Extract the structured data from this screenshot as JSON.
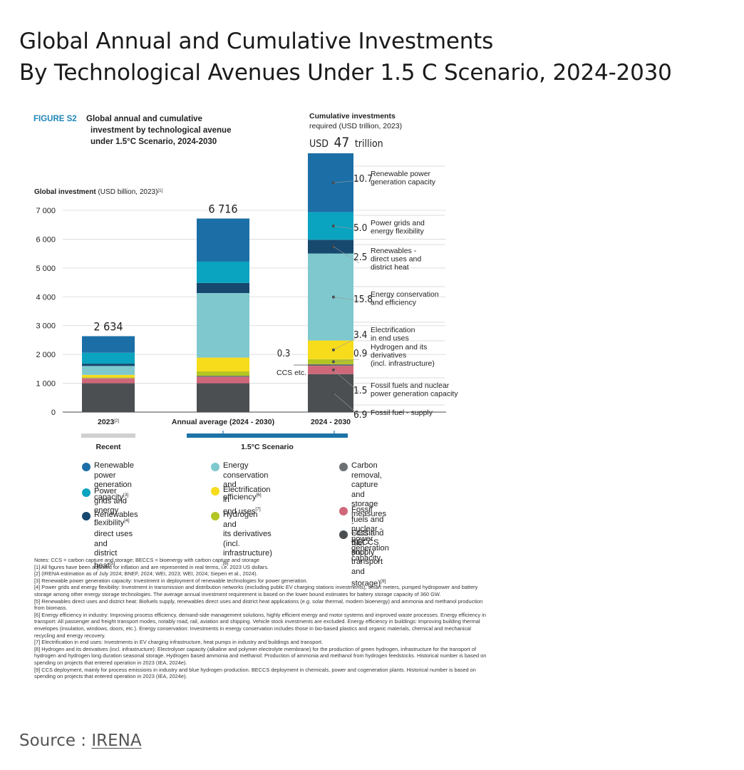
{
  "page": {
    "title_line1": "Global Annual and Cumulative Investments",
    "title_line2": "By Technological Avenues Under 1.5 C Scenario, 2024-2030",
    "source_label": "Source : ",
    "source_link": "IRENA"
  },
  "figure": {
    "label": "FIGURE S2",
    "title_line1": "Global annual and cumulative",
    "title_line2": "investment by technological avenue",
    "title_line3": "under 1.5°C Scenario, 2024-2030",
    "cumulative_heading_line1": "Cumulative investments",
    "cumulative_heading_line2": "required (USD trillion, 2023)",
    "cumulative_total_prefix": "USD",
    "cumulative_total_value": "47",
    "cumulative_total_unit": "trillion",
    "ylabel": "Global investment (USD billion, 2023)",
    "ylabel_note": "[1]",
    "group_recent": "Recent",
    "group_scenario": "1.5°C Scenario",
    "ccs_value": "0.3",
    "ccs_label": "CCS etc."
  },
  "chart_data": {
    "type": "bar",
    "stacked": true,
    "ylim": [
      0,
      7000
    ],
    "yticks": [
      "0",
      "1 000",
      "2 000",
      "3 000",
      "4 000",
      "5 000",
      "6 000",
      "7 000"
    ],
    "ytick_values": [
      0,
      1000,
      2000,
      3000,
      4000,
      5000,
      6000,
      7000
    ],
    "categories": [
      "2023",
      "Annual average (2024 - 2030)"
    ],
    "category_notes": [
      "[2]",
      ""
    ],
    "totals": [
      "2 634",
      "6 716"
    ],
    "series": [
      {
        "name": "Fossil fuel - supply",
        "color": "#4b4f51",
        "values": [
          1000,
          1000
        ]
      },
      {
        "name": "Fossil fuels and nuclear - power generation capacity",
        "color": "#d0687a",
        "values": [
          170,
          220
        ]
      },
      {
        "name": "Carbon removal, capture and storage measures - CCS and BECCS (incl. transport and storage)",
        "color": "#6d7173",
        "values": [
          10,
          40
        ]
      },
      {
        "name": "Hydrogen and its derivatives (incl. infrastructure)",
        "color": "#b3c523",
        "values": [
          20,
          150
        ]
      },
      {
        "name": "Electrification in end uses",
        "color": "#f7dc1c",
        "values": [
          90,
          480
        ]
      },
      {
        "name": "Energy conservation and efficiency",
        "color": "#7ec8ce",
        "values": [
          310,
          2240
        ]
      },
      {
        "name": "Renewables - direct uses and district heat",
        "color": "#17486e",
        "values": [
          80,
          350
        ]
      },
      {
        "name": "Power grids and energy flexibility",
        "color": "#0aa4c0",
        "values": [
          380,
          740
        ]
      },
      {
        "name": "Renewable power generation capacity",
        "color": "#1b6fa6",
        "values": [
          574,
          1496
        ]
      }
    ],
    "cumulative": {
      "category": "2024 - 2030",
      "total": 47,
      "segments": [
        {
          "value": "6.9",
          "label": "Fossil fuel - supply",
          "color": "#4b4f51",
          "v": 6.9
        },
        {
          "value": "1.5",
          "label": "Fossil fuels and nuclear\npower generation capacity",
          "color": "#d0687a",
          "v": 1.5
        },
        {
          "value": "0.3",
          "label": "CCS etc.",
          "color": "#6d7173",
          "v": 0.3
        },
        {
          "value": "0.9",
          "label": "Hydrogen and its\nderivatives\n(incl. infrastructure)",
          "color": "#b3c523",
          "v": 0.9
        },
        {
          "value": "3.4",
          "label": "Electrification\nin end uses",
          "color": "#f7dc1c",
          "v": 3.4
        },
        {
          "value": "15.8",
          "label": "Energy conservation\nand efficiency",
          "color": "#7ec8ce",
          "v": 15.8
        },
        {
          "value": "2.5",
          "label": "Renewables -\ndirect uses and\ndistrict heat",
          "color": "#17486e",
          "v": 2.5
        },
        {
          "value": "5.0",
          "label": "Power grids and\nenergy flexibility",
          "color": "#0aa4c0",
          "v": 5.0
        },
        {
          "value": "10.7",
          "label": "Renewable power\ngeneration capacity",
          "color": "#1b6fa6",
          "v": 10.7
        }
      ]
    }
  },
  "legend": [
    {
      "label": "Renewable power\ngeneration capacity",
      "note": "[3]",
      "color": "#1b6fa6"
    },
    {
      "label": "Power grids and\nenergy flexibility",
      "note": "[4]",
      "color": "#0aa4c0"
    },
    {
      "label": "Renewables -\ndirect uses and\ndistrict heat",
      "note": "[5]",
      "color": "#17486e"
    },
    {
      "label": "Energy conservation\nand efficiency",
      "note": "[6]",
      "color": "#7ec8ce"
    },
    {
      "label": "Electrification in\nend uses",
      "note": "[7]",
      "color": "#f7dc1c"
    },
    {
      "label": "Hydrogen and\nits derivatives\n(incl. infrastructure)",
      "note": "[8]",
      "color": "#b3c523"
    },
    {
      "label": "Carbon removal, capture\nand storage measures -\nCCS and BECCS\n(incl. transport and storage)",
      "note": "[9]",
      "color": "#6d7173"
    },
    {
      "label": "Fossil fuels and nuclear -\npower generation capacity",
      "note": "",
      "color": "#d0687a"
    },
    {
      "label": "Fossil fuel - supply",
      "note": "",
      "color": "#4b4f51"
    }
  ],
  "notes": [
    "Notes: CCS = carbon capture and storage; BECCS = bioenergy with carbon capture and storage",
    "[1]   All figures have been adjusted for inflation and are represented in real terms, i.e. 2023 US dollars.",
    "[2]   (IRENA estimation as of July 2024; BNEF, 2024; WEI, 2023; WEI, 2024; Siepen et al., 2024).",
    "[3]   Renewable power generation capacity: Investment in deployment of renewable technologies for power generation.",
    "[4]   Power grids and energy flexibility: Investment in transmission and distribution networks (excluding public EV charging stations investments), smart meters, pumped hydropower and battery storage among other energy storage technologies. The average annual investment requirement is based on the lower bound estimates for battery storage capacity of 360 GW.",
    "[5]   Renewables direct uses and district heat: Biofuels supply, renewables direct uses and district heat applications (e.g. solar thermal, modern bioenergy) and ammonia and methanol production from biomass.",
    "[6]   Energy efficiency in industry: Improving process efficiency, demand-side management solutions, highly efficient energy and motor systems and improved waste processes. Energy efficiency in transport: All passenger and freight transport modes, notably road, rail, aviation and shipping. Vehicle stock investments are excluded. Energy efficiency in buildings: Improving building thermal envelopes (insulation, windows, doors, etc.). Energy conservation: Investments in energy conservation includes those in bio-based plastics and organic materials, chemical and mechanical recycling and energy recovery.",
    "[7]   Electrification in end uses: Investments in EV charging infrastructure, heat pumps in industry and buildings and transport.",
    "[8]   Hydrogen and its derivatives (incl. infrastructure): Electrolyser capacity (alkaline and polymer electrolyte membrane) for the production of green hydrogen, infrastructure for the transport of hydrogen and hydrogen long duration seasonal storage. Hydrogen based ammonia and methanol: Production of ammonia and methanol from hydrogen feedstocks. Historical number is based on spending on projects that entered operation in 2023 (IEA, 2024e).",
    "[9]   CCS deployment, mainly for process emissions in industry and blue hydrogen production. BECCS deployment in chemicals, power and cogeneration plants. Historical number is based on spending on projects that entered operation in 2023 (IEA, 2024e)."
  ]
}
